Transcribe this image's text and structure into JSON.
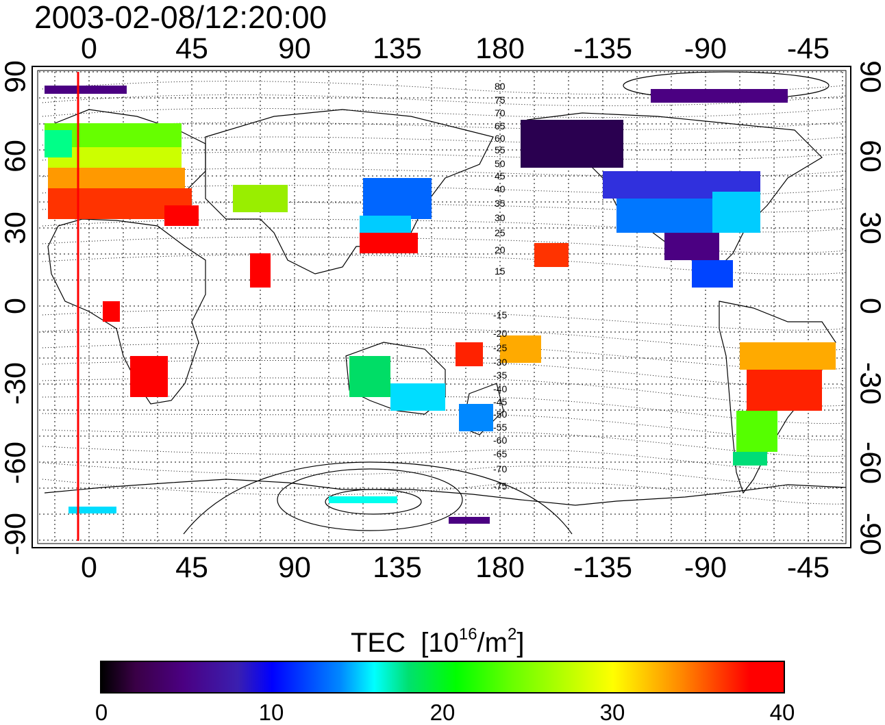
{
  "title": "2003-02-08/12:20:00",
  "axes": {
    "lon_ticks": [
      "0",
      "45",
      "90",
      "135",
      "180",
      "-135",
      "-90",
      "-45"
    ],
    "lat_ticks": [
      "90",
      "60",
      "30",
      "0",
      "-30",
      "-60",
      "-90"
    ]
  },
  "contour_labels_north": [
    "80",
    "75",
    "70",
    "65",
    "60",
    "55",
    "50",
    "45",
    "40",
    "35",
    "30",
    "25",
    "20",
    "15"
  ],
  "contour_labels_south": [
    "-15",
    "-20",
    "-25",
    "-30",
    "-35",
    "-40",
    "-45",
    "-50",
    "-55",
    "-60",
    "-65",
    "-70",
    "-75"
  ],
  "colorbar": {
    "label": "TEC",
    "unit_prefix": "[10",
    "unit_exp": "16",
    "unit_mid": "/m",
    "unit_exp2": "2",
    "unit_suffix": "]",
    "ticks": [
      "0",
      "10",
      "20",
      "30",
      "40"
    ],
    "min": 0,
    "max": 40
  },
  "colors": {
    "terminator_line": "#ff0000",
    "high_tec": "#ff0000",
    "low_tec": "#2a0050"
  }
}
